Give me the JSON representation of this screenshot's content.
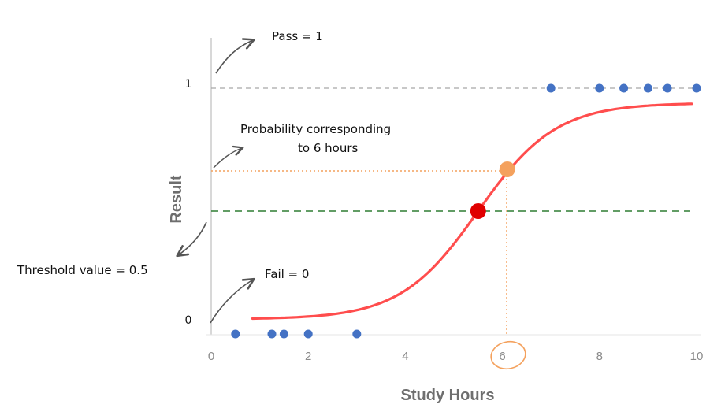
{
  "chart_data": {
    "type": "scatter",
    "xlabel": "Study Hours",
    "ylabel": "Result",
    "xlim": [
      0,
      10
    ],
    "ylim": [
      0,
      1
    ],
    "x_ticks": [
      "0",
      "2",
      "4",
      "6",
      "8",
      "10"
    ],
    "y_tick_labels": {
      "low": "0",
      "high": "1"
    },
    "points": [
      {
        "x": 0.5,
        "y": 0
      },
      {
        "x": 1.25,
        "y": 0
      },
      {
        "x": 1.5,
        "y": 0
      },
      {
        "x": 2.0,
        "y": 0
      },
      {
        "x": 3.0,
        "y": 0
      },
      {
        "x": 7.0,
        "y": 1
      },
      {
        "x": 8.0,
        "y": 1
      },
      {
        "x": 8.5,
        "y": 1
      },
      {
        "x": 9.0,
        "y": 1
      },
      {
        "x": 9.4,
        "y": 1
      },
      {
        "x": 10.0,
        "y": 1
      }
    ],
    "points_color": "#4472c4",
    "sigmoid": {
      "x_range": [
        0.85,
        9.9
      ],
      "midpoint": 5.5,
      "k": 1.25,
      "low": 0.06,
      "high": 0.94,
      "color": "#ff4d4d"
    },
    "threshold": {
      "y": 0.5,
      "color": "#2e7d32"
    },
    "threshold_point": {
      "x": 5.5,
      "y": 0.5,
      "color": "#e00000"
    },
    "probability_point": {
      "x": 6.1,
      "y": 0.67,
      "color": "#f4a15d"
    },
    "highlighted_tick": "6",
    "annotations": {
      "pass": "Pass = 1",
      "fail": "Fail = 0",
      "probability_line1": "Probability corresponding",
      "probability_line2": "to 6 hours",
      "threshold": "Threshold value = 0.5"
    }
  }
}
